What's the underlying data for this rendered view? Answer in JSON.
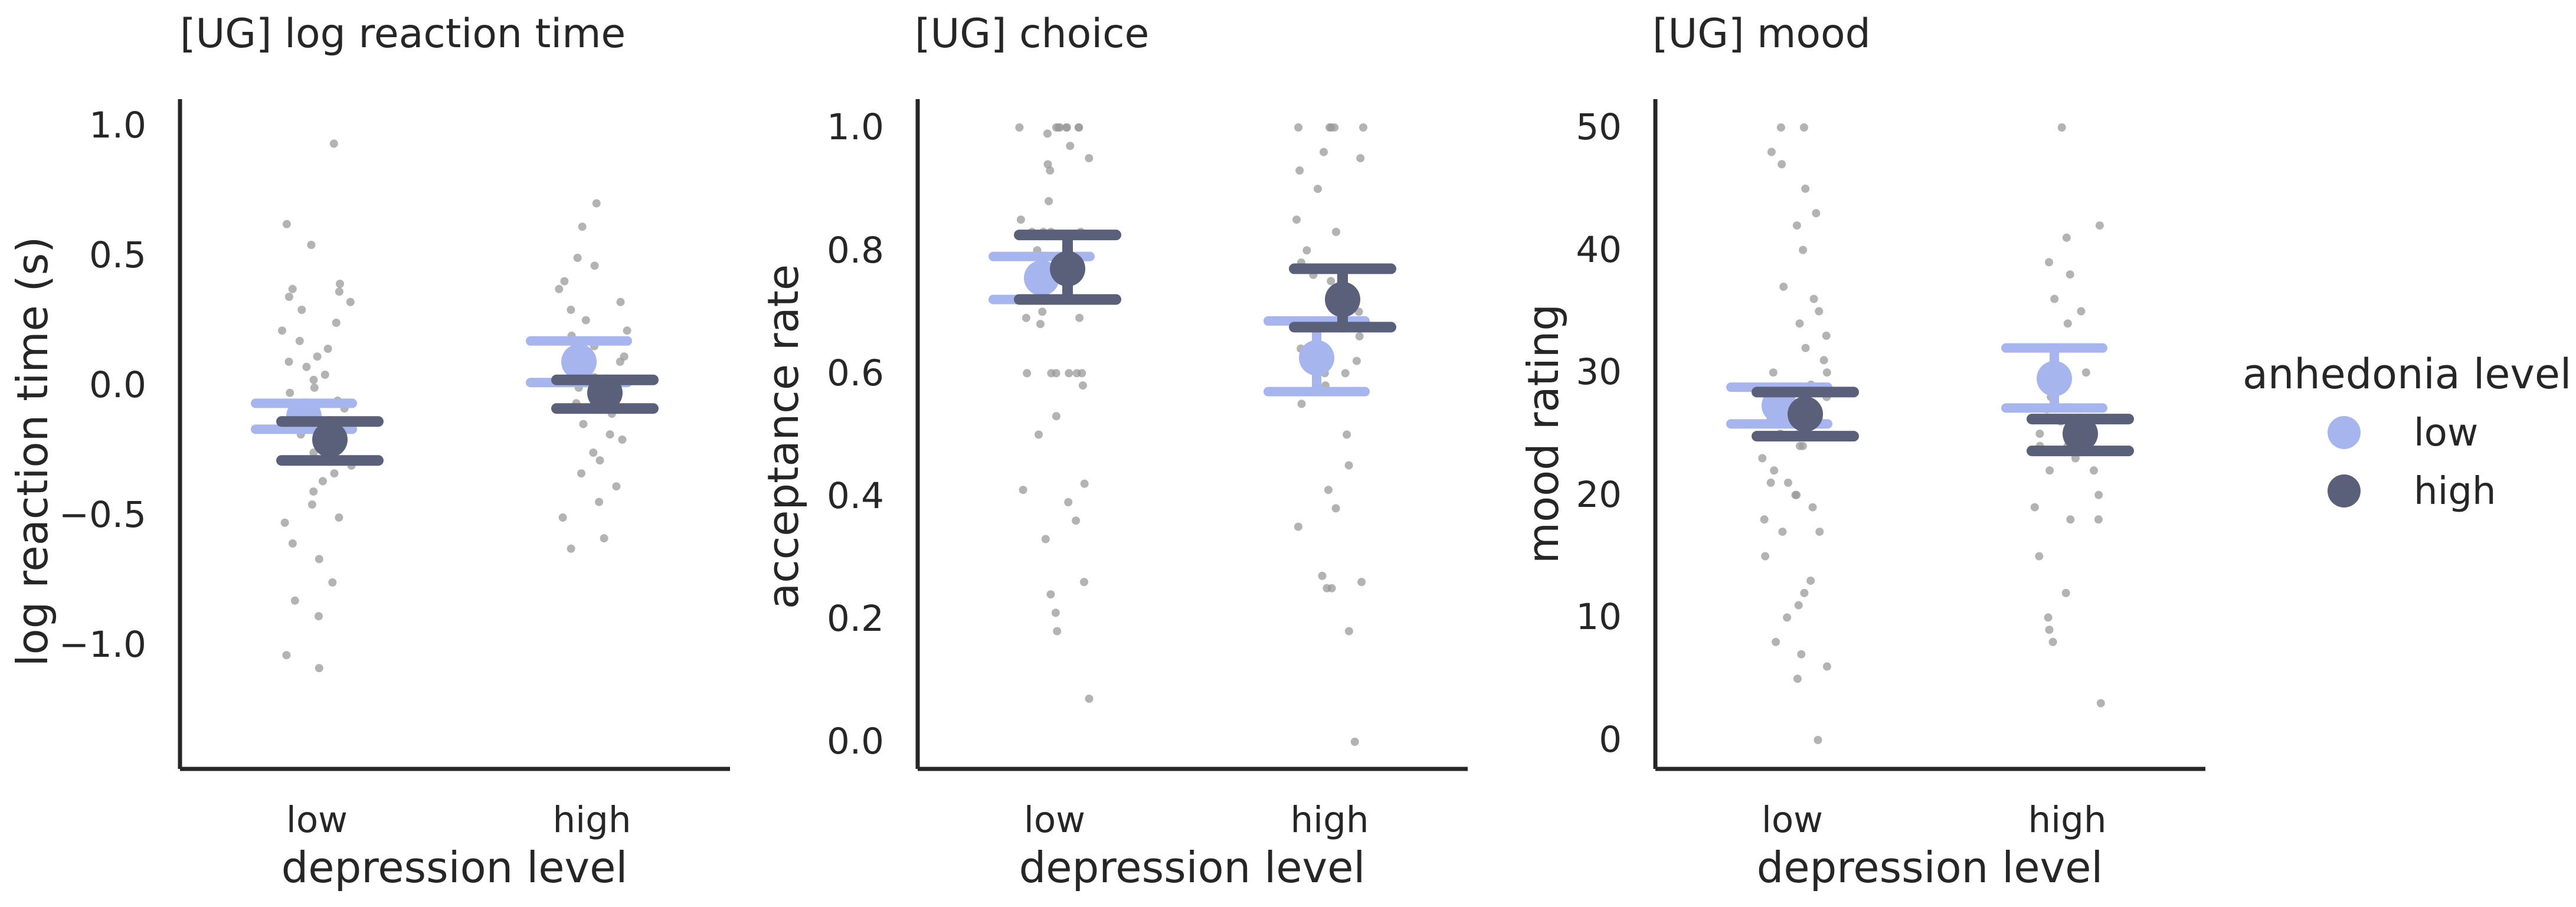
{
  "chart_data": [
    {
      "type": "scatter",
      "title": "[UG] log reaction time",
      "xlabel": "depression level",
      "ylabel": "log reaction time (s)",
      "categories": [
        "low",
        "high"
      ],
      "ylim": [
        -1.5,
        1.1
      ],
      "yticks": [
        1.0,
        0.5,
        0.0,
        -0.5,
        -1.0
      ],
      "ytick_labels": [
        "1.0",
        "0.5",
        "0.0",
        "−0.5",
        "−1.0"
      ],
      "raw_points": [
        {
          "category": "low",
          "values": [
            0.94,
            0.63,
            0.55,
            0.4,
            0.38,
            0.37,
            0.35,
            0.33,
            0.3,
            0.25,
            0.22,
            0.18,
            0.15,
            0.12,
            0.1,
            0.08,
            0.05,
            0.03,
            0.0,
            -0.02,
            -0.05,
            -0.08,
            -0.1,
            -0.12,
            -0.15,
            -0.18,
            -0.2,
            -0.22,
            -0.25,
            -0.28,
            -0.3,
            -0.33,
            -0.36,
            -0.4,
            -0.45,
            -0.5,
            -0.52,
            -0.6,
            -0.66,
            -0.75,
            -0.82,
            -0.88,
            -1.03,
            -1.08
          ]
        },
        {
          "category": "high",
          "values": [
            0.71,
            0.62,
            0.5,
            0.47,
            0.41,
            0.38,
            0.33,
            0.3,
            0.26,
            0.22,
            0.2,
            0.16,
            0.12,
            0.1,
            0.06,
            0.04,
            0.02,
            0.0,
            -0.04,
            -0.06,
            -0.1,
            -0.14,
            -0.18,
            -0.2,
            -0.25,
            -0.28,
            -0.33,
            -0.38,
            -0.44,
            -0.5,
            -0.58,
            -0.62
          ]
        }
      ],
      "series": [
        {
          "name": "low",
          "color": "#a6b5ee",
          "means": [
            -0.11,
            0.1
          ],
          "ci": [
            [
              -0.16,
              -0.06
            ],
            [
              0.02,
              0.18
            ]
          ]
        },
        {
          "name": "high",
          "color": "#5a6079",
          "means": [
            -0.2,
            -0.02
          ],
          "ci": [
            [
              -0.28,
              -0.13
            ],
            [
              -0.08,
              0.03
            ]
          ]
        }
      ]
    },
    {
      "type": "scatter",
      "title": "[UG] choice",
      "xlabel": "depression level",
      "ylabel": "acceptance rate",
      "categories": [
        "low",
        "high"
      ],
      "ylim": [
        -0.05,
        1.05
      ],
      "yticks": [
        1.0,
        0.8,
        0.6,
        0.4,
        0.2,
        0.0
      ],
      "ytick_labels": [
        "1.0",
        "0.8",
        "0.6",
        "0.4",
        "0.2",
        "0.0"
      ],
      "raw_points": [
        {
          "category": "low",
          "values": [
            1.0,
            1.0,
            1.0,
            1.0,
            1.0,
            1.0,
            1.0,
            1.0,
            0.99,
            0.97,
            0.95,
            0.94,
            0.93,
            0.88,
            0.85,
            0.83,
            0.83,
            0.83,
            0.83,
            0.8,
            0.78,
            0.76,
            0.74,
            0.72,
            0.7,
            0.69,
            0.69,
            0.68,
            0.6,
            0.6,
            0.6,
            0.6,
            0.6,
            0.6,
            0.58,
            0.53,
            0.5,
            0.42,
            0.41,
            0.39,
            0.36,
            0.33,
            0.26,
            0.24,
            0.21,
            0.18,
            0.07
          ]
        },
        {
          "category": "high",
          "values": [
            1.0,
            1.0,
            1.0,
            1.0,
            1.0,
            0.96,
            0.95,
            0.93,
            0.9,
            0.85,
            0.83,
            0.8,
            0.78,
            0.76,
            0.75,
            0.7,
            0.68,
            0.66,
            0.64,
            0.62,
            0.6,
            0.6,
            0.58,
            0.55,
            0.5,
            0.45,
            0.41,
            0.38,
            0.35,
            0.27,
            0.26,
            0.25,
            0.25,
            0.18,
            0.0
          ]
        }
      ],
      "series": [
        {
          "name": "low",
          "color": "#a6b5ee",
          "means": [
            0.755,
            0.625
          ],
          "ci": [
            [
              0.72,
              0.79
            ],
            [
              0.57,
              0.685
            ]
          ]
        },
        {
          "name": "high",
          "color": "#5a6079",
          "means": [
            0.77,
            0.72
          ],
          "ci": [
            [
              0.72,
              0.825
            ],
            [
              0.675,
              0.77
            ]
          ]
        }
      ]
    },
    {
      "type": "scatter",
      "title": "[UG] mood",
      "xlabel": "depression level",
      "ylabel": "mood rating",
      "categories": [
        "low",
        "high"
      ],
      "ylim": [
        -2.5,
        52.5
      ],
      "yticks": [
        50,
        40,
        30,
        20,
        10,
        0
      ],
      "ytick_labels": [
        "50",
        "40",
        "30",
        "20",
        "10",
        "0"
      ],
      "raw_points": [
        {
          "category": "low",
          "values": [
            50,
            50,
            48,
            47,
            45,
            43,
            42,
            40,
            37,
            36,
            35,
            34,
            33,
            32,
            31,
            30,
            30,
            29,
            28,
            28,
            27,
            27,
            26,
            26,
            25,
            25,
            24,
            24,
            23,
            22,
            21,
            21,
            20,
            20,
            19,
            18,
            17,
            17,
            15,
            13,
            12,
            11,
            10,
            8,
            7,
            6,
            5,
            0
          ]
        },
        {
          "category": "high",
          "values": [
            50,
            42,
            41,
            39,
            38,
            36,
            35,
            34,
            32,
            30,
            29,
            28,
            27,
            26,
            25,
            25,
            24,
            24,
            23,
            22,
            22,
            20,
            19,
            18,
            18,
            15,
            12,
            10,
            9,
            8,
            3
          ]
        }
      ],
      "series": [
        {
          "name": "low",
          "color": "#a6b5ee",
          "means": [
            27.3,
            29.5
          ],
          "ci": [
            [
              25.8,
              28.8
            ],
            [
              27.1,
              32.0
            ]
          ]
        },
        {
          "name": "high",
          "color": "#5a6079",
          "means": [
            26.6,
            25.0
          ],
          "ci": [
            [
              24.8,
              28.4
            ],
            [
              23.6,
              26.2
            ]
          ]
        }
      ]
    }
  ],
  "legend": {
    "title": "anhedonia level",
    "placement": "right",
    "items": [
      {
        "label": "low",
        "color": "#a6b5ee"
      },
      {
        "label": "high",
        "color": "#5a6079"
      }
    ]
  },
  "colors": {
    "points": "#9a9a9a",
    "axis": "#262626"
  }
}
